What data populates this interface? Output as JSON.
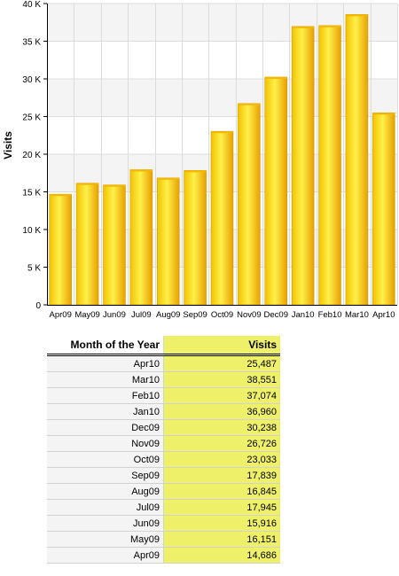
{
  "chart_data": {
    "type": "bar",
    "ylabel": "Visits",
    "xlabel": "",
    "ylim": [
      0,
      40000
    ],
    "yticks": [
      0,
      5000,
      10000,
      15000,
      20000,
      25000,
      30000,
      35000,
      40000
    ],
    "ytick_labels": [
      "0",
      "5 K",
      "10 K",
      "15 K",
      "20 K",
      "25 K",
      "30 K",
      "35 K",
      "40 K"
    ],
    "categories": [
      "Apr09",
      "May09",
      "Jun09",
      "Jul09",
      "Aug09",
      "Sep09",
      "Oct09",
      "Nov09",
      "Dec09",
      "Jan10",
      "Feb10",
      "Mar10",
      "Apr10"
    ],
    "values": [
      14686,
      16151,
      15916,
      17945,
      16845,
      17839,
      23033,
      26726,
      30238,
      36960,
      37074,
      38551,
      25487
    ],
    "grid": true,
    "bar_color": "#f5b800",
    "band_color": "#f4f4f4"
  },
  "table": {
    "headers": {
      "month": "Month of the Year",
      "visits": "Visits"
    },
    "rows": [
      {
        "month": "Apr10",
        "visits": "25,487"
      },
      {
        "month": "Mar10",
        "visits": "38,551"
      },
      {
        "month": "Feb10",
        "visits": "37,074"
      },
      {
        "month": "Jan10",
        "visits": "36,960"
      },
      {
        "month": "Dec09",
        "visits": "30,238"
      },
      {
        "month": "Nov09",
        "visits": "26,726"
      },
      {
        "month": "Oct09",
        "visits": "23,033"
      },
      {
        "month": "Sep09",
        "visits": "17,839"
      },
      {
        "month": "Aug09",
        "visits": "16,845"
      },
      {
        "month": "Jul09",
        "visits": "17,945"
      },
      {
        "month": "Jun09",
        "visits": "15,916"
      },
      {
        "month": "May09",
        "visits": "16,151"
      },
      {
        "month": "Apr09",
        "visits": "14,686"
      }
    ]
  }
}
